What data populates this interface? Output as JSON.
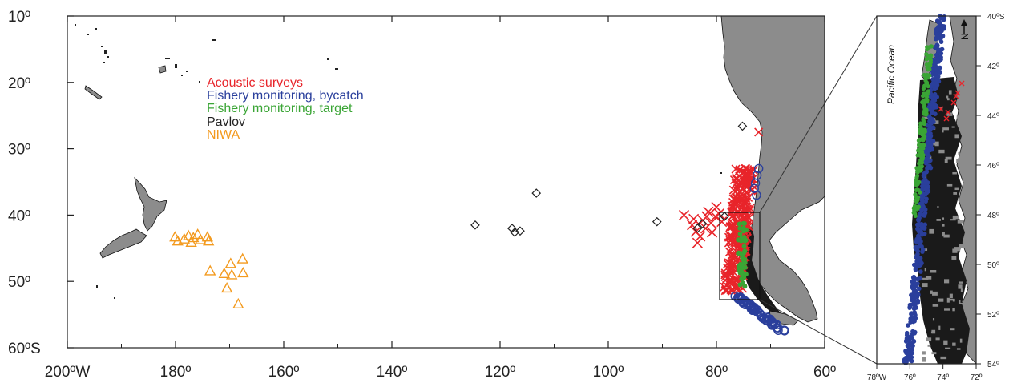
{
  "main_map": {
    "lat_ticks": [
      {
        "lat": 10,
        "label": "10º"
      },
      {
        "lat": 20,
        "label": "20º"
      },
      {
        "lat": 30,
        "label": "30º"
      },
      {
        "lat": 40,
        "label": "40º"
      },
      {
        "lat": 50,
        "label": "50º"
      },
      {
        "lat": 60,
        "label": "60ºS"
      }
    ],
    "lon_ticks": [
      {
        "lon": 200,
        "label": "200ºW"
      },
      {
        "lon": 180,
        "label": "180º"
      },
      {
        "lon": 160,
        "label": "160º"
      },
      {
        "lon": 140,
        "label": "140º"
      },
      {
        "lon": 120,
        "label": "120º"
      },
      {
        "lon": 100,
        "label": "100º"
      },
      {
        "lon": 80,
        "label": "80º"
      },
      {
        "lon": 60,
        "label": "60º"
      }
    ],
    "legend": [
      {
        "label": "Acoustic surveys",
        "color": "#e8242a"
      },
      {
        "label": "Fishery monitoring, bycatch",
        "color": "#2a3f9c"
      },
      {
        "label": "Fishery monitoring, target",
        "color": "#3aa535"
      },
      {
        "label": "Pavlov",
        "color": "#222222"
      },
      {
        "label": "NIWA",
        "color": "#f39a1e"
      }
    ],
    "pavlov_points": [
      [
        75.2,
        26.6
      ],
      [
        113.3,
        36.7
      ],
      [
        124.6,
        41.5
      ],
      [
        117.8,
        42.0
      ],
      [
        117.3,
        42.6
      ],
      [
        116.3,
        42.4
      ],
      [
        91.0,
        41.0
      ],
      [
        83.5,
        42.0
      ],
      [
        82.6,
        41.3
      ],
      [
        78.5,
        40.2
      ]
    ],
    "niwa_points": [
      [
        180.1,
        43.3
      ],
      [
        179.6,
        43.9
      ],
      [
        178.4,
        43.6
      ],
      [
        177.6,
        43.1
      ],
      [
        176.7,
        43.4
      ],
      [
        177.1,
        44.1
      ],
      [
        175.4,
        43.7
      ],
      [
        174.1,
        43.3
      ],
      [
        173.9,
        43.9
      ],
      [
        175.9,
        42.9
      ],
      [
        173.6,
        48.4
      ],
      [
        171.0,
        48.8
      ],
      [
        169.8,
        47.3
      ],
      [
        169.6,
        49.0
      ],
      [
        170.5,
        51.0
      ],
      [
        167.6,
        46.6
      ],
      [
        167.5,
        48.7
      ],
      [
        168.4,
        53.4
      ]
    ]
  },
  "inset": {
    "ocean_label": "Pacific Ocean",
    "north_label": "N",
    "lat_ticks": [
      {
        "lat": 40,
        "label": "40ºS"
      },
      {
        "lat": 42,
        "label": "42º"
      },
      {
        "lat": 44,
        "label": "44º"
      },
      {
        "lat": 46,
        "label": "46º"
      },
      {
        "lat": 48,
        "label": "48º"
      },
      {
        "lat": 50,
        "label": "50º"
      },
      {
        "lat": 52,
        "label": "52º"
      },
      {
        "lat": 54,
        "label": "54º"
      }
    ],
    "lon_ticks": [
      {
        "lon": 78,
        "label": "78ºW"
      },
      {
        "lon": 76,
        "label": "76º"
      },
      {
        "lon": 74,
        "label": "74º"
      },
      {
        "lon": 72,
        "label": "72º"
      }
    ]
  },
  "colors": {
    "land": "#8c8c8c",
    "coast": "#111111",
    "acoustic": "#e8242a",
    "bycatch": "#2a3f9c",
    "target": "#3aa535",
    "pavlov": "#222222",
    "niwa": "#f39a1e"
  }
}
